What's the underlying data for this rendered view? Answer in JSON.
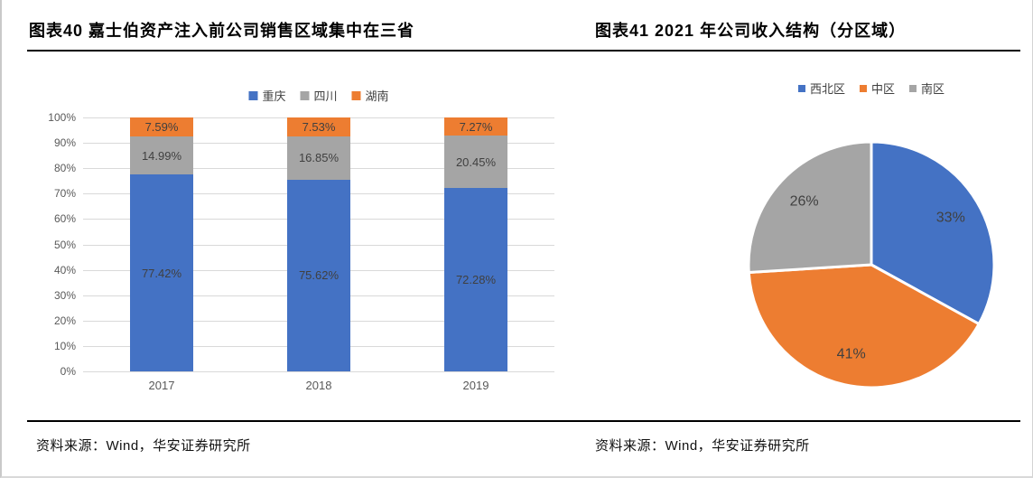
{
  "figures": [
    {
      "title": "图表40  嘉士伯资产注入前公司销售区域集中在三省",
      "source": "资料来源：Wind，华安证券研究所"
    },
    {
      "title": "图表41 2021 年公司收入结构（分区域）",
      "source": "资料来源：Wind，华安证券研究所"
    }
  ],
  "chart_data": [
    {
      "type": "stacked-bar-100",
      "title": "图表40 嘉士伯资产注入前公司销售区域集中在三省",
      "categories": [
        "2017",
        "2018",
        "2019"
      ],
      "series": [
        {
          "name": "重庆",
          "color": "#4472C4",
          "values": [
            77.42,
            75.62,
            72.28
          ],
          "labels": [
            "77.42%",
            "75.62%",
            "72.28%"
          ]
        },
        {
          "name": "四川",
          "color": "#A5A5A5",
          "values": [
            14.99,
            16.85,
            20.45
          ],
          "labels": [
            "14.99%",
            "16.85%",
            "20.45%"
          ]
        },
        {
          "name": "湖南",
          "color": "#ED7D31",
          "values": [
            7.59,
            7.53,
            7.27
          ],
          "labels": [
            "7.59%",
            "7.53%",
            "7.27%"
          ]
        }
      ],
      "ylim": [
        0,
        100
      ],
      "y_ticks": [
        "0%",
        "10%",
        "20%",
        "30%",
        "40%",
        "50%",
        "60%",
        "70%",
        "80%",
        "90%",
        "100%"
      ],
      "grid": true,
      "legend_position": "top"
    },
    {
      "type": "pie",
      "title": "图表41 2021 年公司收入结构（分区域）",
      "slices": [
        {
          "name": "西北区",
          "color": "#4472C4",
          "value": 33,
          "label": "33%"
        },
        {
          "name": "中区",
          "color": "#ED7D31",
          "value": 41,
          "label": "41%"
        },
        {
          "name": "南区",
          "color": "#A5A5A5",
          "value": 26,
          "label": "26%"
        }
      ],
      "start_angle": 0,
      "direction": "clockwise",
      "legend_position": "top"
    }
  ]
}
